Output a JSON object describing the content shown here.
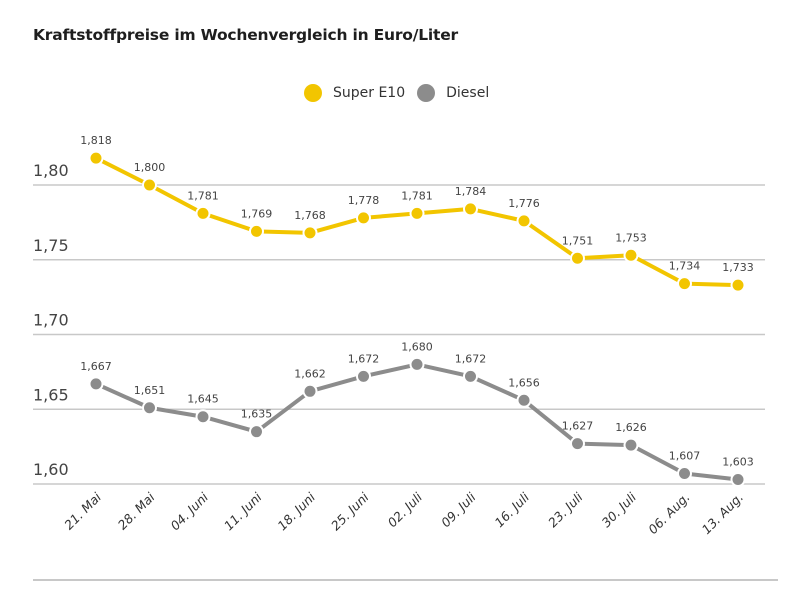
{
  "chart_data": {
    "type": "line",
    "title": "Kraftstoffpreise im Wochenvergleich in Euro/Liter",
    "xlabel": "",
    "ylabel": "",
    "categories": [
      "21. Mai",
      "28. Mai",
      "04. Juni",
      "11. Juni",
      "18. Juni",
      "25. Juni",
      "02. Juli",
      "09. Juli",
      "16. Juli",
      "23. Juli",
      "30. Juli",
      "06. Aug.",
      "13. Aug."
    ],
    "series": [
      {
        "name": "Super E10",
        "color": "#f2c500",
        "values": [
          1.818,
          1.8,
          1.781,
          1.769,
          1.768,
          1.778,
          1.781,
          1.784,
          1.776,
          1.751,
          1.753,
          1.734,
          1.733
        ],
        "labels": [
          "1,818",
          "1,800",
          "1,781",
          "1,769",
          "1,768",
          "1,778",
          "1,781",
          "1,784",
          "1,776",
          "1,751",
          "1,753",
          "1,734",
          "1,733"
        ]
      },
      {
        "name": "Diesel",
        "color": "#8c8c8c",
        "values": [
          1.667,
          1.651,
          1.645,
          1.635,
          1.662,
          1.672,
          1.68,
          1.672,
          1.656,
          1.627,
          1.626,
          1.607,
          1.603
        ],
        "labels": [
          "1,667",
          "1,651",
          "1,645",
          "1,635",
          "1,662",
          "1,672",
          "1,680",
          "1,672",
          "1,656",
          "1,627",
          "1,626",
          "1,607",
          "1,603"
        ]
      }
    ],
    "yticks": [
      1.8,
      1.75,
      1.7,
      1.65,
      1.6
    ],
    "ytick_labels": [
      "1,80",
      "1,75",
      "1,70",
      "1,65",
      "1,60"
    ],
    "ylim": [
      1.6,
      1.8
    ],
    "grid": true,
    "legend_position": "top-center"
  }
}
